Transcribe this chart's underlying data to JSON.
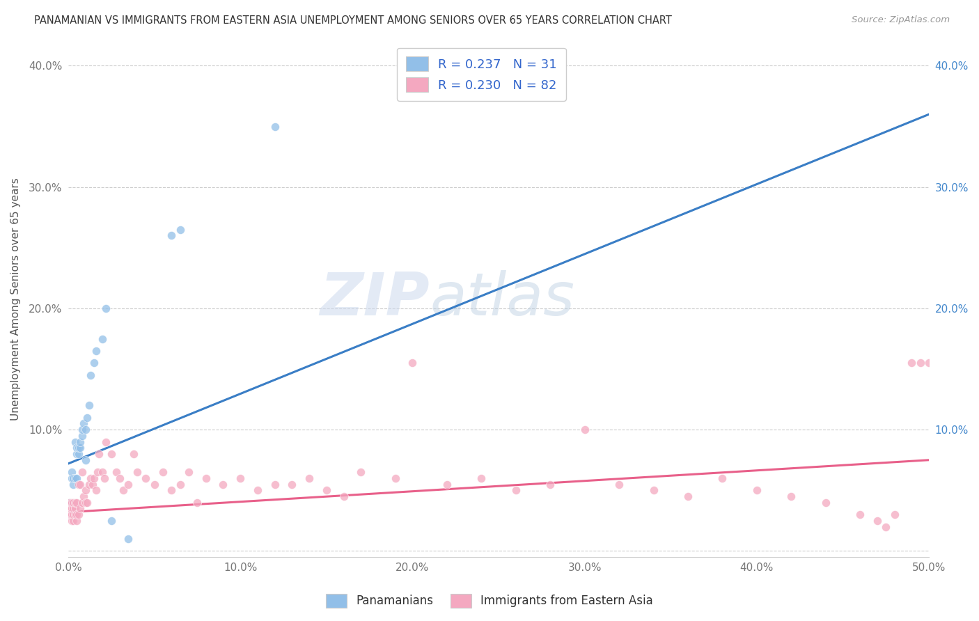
{
  "title": "PANAMANIAN VS IMMIGRANTS FROM EASTERN ASIA UNEMPLOYMENT AMONG SENIORS OVER 65 YEARS CORRELATION CHART",
  "source": "Source: ZipAtlas.com",
  "ylabel": "Unemployment Among Seniors over 65 years",
  "xlim": [
    0.0,
    0.5
  ],
  "ylim": [
    -0.005,
    0.42
  ],
  "xticks": [
    0.0,
    0.1,
    0.2,
    0.3,
    0.4,
    0.5
  ],
  "yticks": [
    0.0,
    0.1,
    0.2,
    0.3,
    0.4
  ],
  "xticklabels": [
    "0.0%",
    "10.0%",
    "20.0%",
    "30.0%",
    "40.0%",
    "50.0%"
  ],
  "yticklabels": [
    "",
    "10.0%",
    "20.0%",
    "30.0%",
    "40.0%"
  ],
  "right_yticklabels": [
    "",
    "10.0%",
    "20.0%",
    "30.0%",
    "40.0%"
  ],
  "watermark": "ZIPatlas",
  "blue_color": "#92bfe8",
  "pink_color": "#f4a8c0",
  "blue_line_color": "#3a7ec6",
  "pink_line_color": "#e8608a",
  "dashed_line_color": "#b0b0b0",
  "blue_line_x0": 0.0,
  "blue_line_y0": 0.072,
  "blue_line_x1": 0.5,
  "blue_line_y1": 0.36,
  "pink_line_x0": 0.0,
  "pink_line_y0": 0.032,
  "pink_line_x1": 0.5,
  "pink_line_y1": 0.075,
  "pan_x": [
    0.001,
    0.002,
    0.002,
    0.003,
    0.003,
    0.004,
    0.004,
    0.005,
    0.005,
    0.005,
    0.006,
    0.006,
    0.007,
    0.007,
    0.008,
    0.008,
    0.009,
    0.01,
    0.01,
    0.011,
    0.012,
    0.013,
    0.015,
    0.016,
    0.02,
    0.022,
    0.025,
    0.035,
    0.06,
    0.065,
    0.12
  ],
  "pan_y": [
    0.04,
    0.06,
    0.065,
    0.055,
    0.06,
    0.06,
    0.09,
    0.06,
    0.08,
    0.085,
    0.08,
    0.085,
    0.085,
    0.09,
    0.095,
    0.1,
    0.105,
    0.075,
    0.1,
    0.11,
    0.12,
    0.145,
    0.155,
    0.165,
    0.175,
    0.2,
    0.025,
    0.01,
    0.26,
    0.265,
    0.35
  ],
  "ea_x": [
    0.001,
    0.001,
    0.001,
    0.002,
    0.002,
    0.002,
    0.002,
    0.003,
    0.003,
    0.003,
    0.003,
    0.004,
    0.004,
    0.004,
    0.005,
    0.005,
    0.005,
    0.006,
    0.006,
    0.007,
    0.007,
    0.008,
    0.008,
    0.009,
    0.01,
    0.01,
    0.011,
    0.012,
    0.013,
    0.014,
    0.015,
    0.016,
    0.017,
    0.018,
    0.02,
    0.021,
    0.022,
    0.025,
    0.028,
    0.03,
    0.032,
    0.035,
    0.038,
    0.04,
    0.045,
    0.05,
    0.055,
    0.06,
    0.065,
    0.07,
    0.075,
    0.08,
    0.09,
    0.1,
    0.11,
    0.12,
    0.13,
    0.14,
    0.15,
    0.16,
    0.17,
    0.19,
    0.2,
    0.22,
    0.24,
    0.26,
    0.28,
    0.3,
    0.32,
    0.34,
    0.36,
    0.38,
    0.4,
    0.42,
    0.44,
    0.46,
    0.47,
    0.475,
    0.48,
    0.49,
    0.495,
    0.5
  ],
  "ea_y": [
    0.03,
    0.035,
    0.04,
    0.025,
    0.03,
    0.035,
    0.04,
    0.025,
    0.03,
    0.035,
    0.04,
    0.03,
    0.035,
    0.04,
    0.025,
    0.03,
    0.04,
    0.03,
    0.055,
    0.035,
    0.055,
    0.04,
    0.065,
    0.045,
    0.04,
    0.05,
    0.04,
    0.055,
    0.06,
    0.055,
    0.06,
    0.05,
    0.065,
    0.08,
    0.065,
    0.06,
    0.09,
    0.08,
    0.065,
    0.06,
    0.05,
    0.055,
    0.08,
    0.065,
    0.06,
    0.055,
    0.065,
    0.05,
    0.055,
    0.065,
    0.04,
    0.06,
    0.055,
    0.06,
    0.05,
    0.055,
    0.055,
    0.06,
    0.05,
    0.045,
    0.065,
    0.06,
    0.155,
    0.055,
    0.06,
    0.05,
    0.055,
    0.1,
    0.055,
    0.05,
    0.045,
    0.06,
    0.05,
    0.045,
    0.04,
    0.03,
    0.025,
    0.02,
    0.03,
    0.155,
    0.155,
    0.155
  ]
}
